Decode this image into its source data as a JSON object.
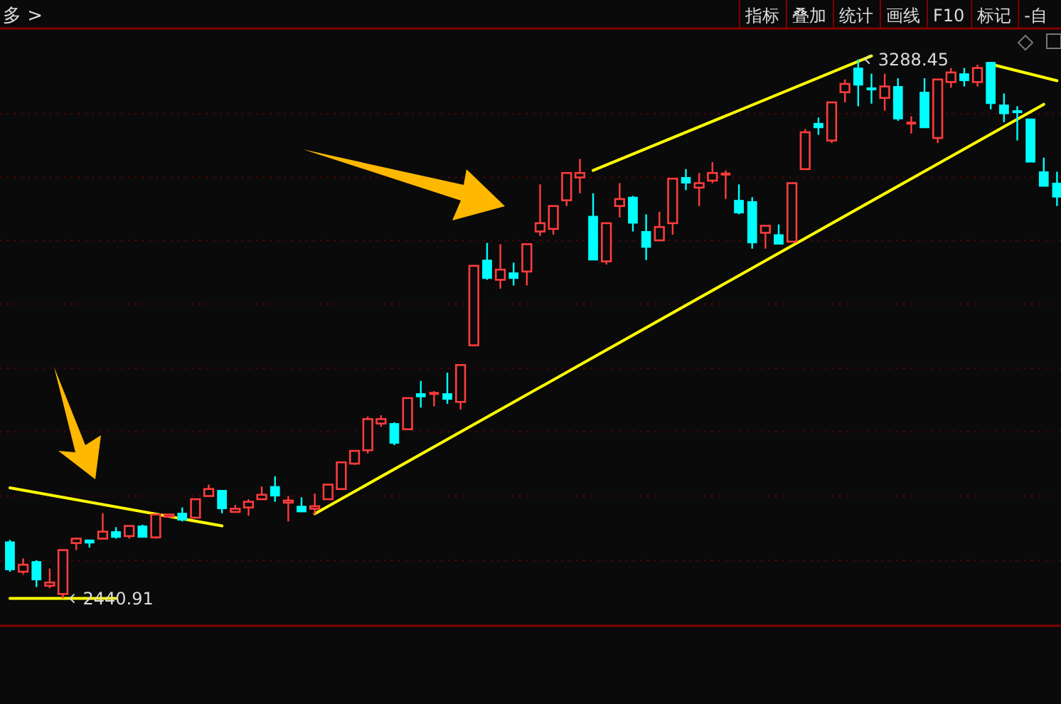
{
  "chart_data": {
    "type": "candlestick",
    "categories": [
      null,
      null,
      null,
      null,
      null,
      null,
      null,
      null,
      null,
      null,
      null,
      null,
      null,
      null,
      null,
      null,
      null,
      null,
      null,
      null,
      null,
      null,
      null,
      null,
      null,
      null,
      null,
      null,
      null,
      null,
      null,
      null,
      null,
      null,
      null,
      null,
      null,
      null,
      null,
      null,
      null,
      null,
      null,
      null,
      null,
      null,
      null,
      null,
      null,
      null,
      null,
      null,
      null,
      null,
      null,
      null,
      null,
      null,
      null,
      null,
      null,
      null,
      null,
      null,
      null,
      null,
      null,
      null,
      null,
      null,
      null,
      null,
      null,
      null,
      null,
      null,
      null,
      null,
      null,
      null
    ],
    "ohlc": [
      [
        2530,
        2533,
        2483,
        2486
      ],
      [
        2483,
        2504,
        2479,
        2494
      ],
      [
        2499,
        2501,
        2459,
        2470
      ],
      [
        2461,
        2488,
        2457,
        2466
      ],
      [
        2448,
        2517,
        2440.91,
        2517
      ],
      [
        2528,
        2537,
        2517,
        2535
      ],
      [
        2533,
        2533,
        2521,
        2528
      ],
      [
        2535,
        2575,
        2535,
        2546
      ],
      [
        2546,
        2553,
        2535,
        2537
      ],
      [
        2539,
        2555,
        2535,
        2555
      ],
      [
        2555,
        2557,
        2537,
        2537
      ],
      [
        2537,
        2573,
        2535,
        2573
      ],
      [
        2571,
        2573,
        2571,
        2573
      ],
      [
        2575,
        2584,
        2562,
        2564
      ],
      [
        2568,
        2597,
        2568,
        2597
      ],
      [
        2602,
        2620,
        2602,
        2613
      ],
      [
        2611,
        2611,
        2575,
        2582
      ],
      [
        2577,
        2588,
        2577,
        2582
      ],
      [
        2584,
        2597,
        2571,
        2593
      ],
      [
        2597,
        2617,
        2597,
        2604
      ],
      [
        2617,
        2633,
        2593,
        2602
      ],
      [
        2593,
        2602,
        2562,
        2595
      ],
      [
        2586,
        2600,
        2577,
        2577
      ],
      [
        2582,
        2606,
        2573,
        2586
      ],
      [
        2597,
        2620,
        2597,
        2620
      ],
      [
        2613,
        2655,
        2613,
        2655
      ],
      [
        2653,
        2673,
        2651,
        2673
      ],
      [
        2674,
        2727,
        2669,
        2723
      ],
      [
        2716,
        2729,
        2711,
        2723
      ],
      [
        2716,
        2718,
        2682,
        2685
      ],
      [
        2707,
        2756,
        2707,
        2756
      ],
      [
        2763,
        2783,
        2741,
        2758
      ],
      [
        2765,
        2767,
        2743,
        2765
      ],
      [
        2763,
        2796,
        2747,
        2754
      ],
      [
        2750,
        2808,
        2738,
        2808
      ],
      [
        2839,
        2964,
        2839,
        2964
      ],
      [
        2973,
        3000,
        2942,
        2944
      ],
      [
        2942,
        2998,
        2928,
        2958
      ],
      [
        2953,
        2969,
        2933,
        2944
      ],
      [
        2955,
        2998,
        2933,
        2998
      ],
      [
        3018,
        3092,
        3011,
        3031
      ],
      [
        3022,
        3058,
        3013,
        3058
      ],
      [
        3067,
        3110,
        3058,
        3110
      ],
      [
        3103,
        3132,
        3078,
        3110
      ],
      [
        3042,
        3078,
        2973,
        2973
      ],
      [
        2971,
        3031,
        2966,
        3031
      ],
      [
        3058,
        3094,
        3040,
        3069
      ],
      [
        3072,
        3074,
        3018,
        3031
      ],
      [
        3018,
        3045,
        2973,
        2993
      ],
      [
        3004,
        3049,
        3004,
        3025
      ],
      [
        3031,
        3101,
        3013,
        3101
      ],
      [
        3103,
        3116,
        3083,
        3094
      ],
      [
        3087,
        3110,
        3058,
        3094
      ],
      [
        3098,
        3127,
        3094,
        3110
      ],
      [
        3110,
        3114,
        3069,
        3110
      ],
      [
        3067,
        3092,
        3045,
        3047
      ],
      [
        3065,
        3072,
        2991,
        3000
      ],
      [
        3016,
        3027,
        2991,
        3027
      ],
      [
        3013,
        3029,
        2998,
        2998
      ],
      [
        3002,
        3094,
        3002,
        3094
      ],
      [
        3116,
        3179,
        3116,
        3174
      ],
      [
        3188,
        3197,
        3170,
        3181
      ],
      [
        3161,
        3221,
        3157,
        3221
      ],
      [
        3237,
        3257,
        3221,
        3250
      ],
      [
        3275,
        3288.45,
        3215,
        3248
      ],
      [
        3244,
        3266,
        3219,
        3243
      ],
      [
        3228,
        3266,
        3208,
        3246
      ],
      [
        3246,
        3259,
        3192,
        3195
      ],
      [
        3190,
        3199,
        3172,
        3190
      ],
      [
        3237,
        3259,
        3181,
        3181
      ],
      [
        3165,
        3257,
        3157,
        3257
      ],
      [
        3253,
        3275,
        3244,
        3268
      ],
      [
        3266,
        3275,
        3246,
        3255
      ],
      [
        3253,
        3280,
        3246,
        3275
      ],
      [
        3284,
        3284,
        3210,
        3219
      ],
      [
        3217,
        3235,
        3190,
        3203
      ],
      [
        3208,
        3215,
        3161,
        3207
      ],
      [
        3195,
        3195,
        3127,
        3127
      ],
      [
        3112,
        3134,
        3089,
        3089
      ],
      [
        3094,
        3112,
        3058,
        3072
      ]
    ],
    "colors": [
      "#00ffff",
      "#ff3c3c",
      "#00ffff",
      "#ff3c3c",
      "#ff3c3c",
      "#ff3c3c",
      "#00ffff",
      "#ff3c3c",
      "#00ffff",
      "#ff3c3c",
      "#00ffff",
      "#ff3c3c",
      "#ff3c3c",
      "#00ffff",
      "#ff3c3c",
      "#ff3c3c",
      "#00ffff",
      "#ff3c3c",
      "#ff3c3c",
      "#ff3c3c",
      "#00ffff",
      "#ff3c3c",
      "#00ffff",
      "#ff3c3c",
      "#ff3c3c",
      "#ff3c3c",
      "#ff3c3c",
      "#ff3c3c",
      "#ff3c3c",
      "#00ffff",
      "#ff3c3c",
      "#00ffff",
      "#ff3c3c",
      "#00ffff",
      "#ff3c3c",
      "#ff3c3c",
      "#00ffff",
      "#ff3c3c",
      "#00ffff",
      "#ff3c3c",
      "#ff3c3c",
      "#ff3c3c",
      "#ff3c3c",
      "#ff3c3c",
      "#00ffff",
      "#ff3c3c",
      "#ff3c3c",
      "#00ffff",
      "#00ffff",
      "#ff3c3c",
      "#ff3c3c",
      "#00ffff",
      "#ff3c3c",
      "#ff3c3c",
      "#ff3c3c",
      "#00ffff",
      "#00ffff",
      "#ff3c3c",
      "#00ffff",
      "#ff3c3c",
      "#ff3c3c",
      "#00ffff",
      "#ff3c3c",
      "#ff3c3c",
      "#00ffff",
      "#00ffff",
      "#ff3c3c",
      "#00ffff",
      "#ff3c3c",
      "#00ffff",
      "#ff3c3c",
      "#ff3c3c",
      "#00ffff",
      "#ff3c3c",
      "#00ffff",
      "#00ffff",
      "#00ffff",
      "#00ffff",
      "#00ffff",
      "#00ffff"
    ],
    "series": [
      {
        "type": "line",
        "color": "#ffff00",
        "values": [
          2615,
          null,
          null,
          null,
          null,
          null,
          null,
          null,
          null,
          null,
          null,
          null,
          null,
          null,
          null,
          null,
          2555,
          null,
          null,
          null,
          null,
          null,
          null,
          null,
          null,
          null,
          null,
          null,
          null,
          null,
          null,
          null,
          null,
          null,
          null,
          null,
          null,
          null,
          null,
          null,
          null,
          null,
          null,
          null,
          null,
          null,
          null,
          null,
          null,
          null,
          null,
          null,
          null,
          null,
          null,
          null,
          null,
          null,
          null,
          null,
          null,
          null,
          null,
          null,
          null,
          null,
          null,
          null,
          null,
          null,
          null,
          null,
          null,
          null,
          null,
          null,
          null,
          null,
          null,
          null
        ]
      },
      {
        "type": "line",
        "color": "#ffff00",
        "values": [
          2441,
          null,
          null,
          null,
          null,
          null,
          null,
          null,
          2441,
          null,
          null,
          null,
          null,
          null,
          null,
          null,
          null,
          null,
          null,
          null,
          null,
          null,
          null,
          null,
          null,
          null,
          null,
          null,
          null,
          null,
          null,
          null,
          null,
          null,
          null,
          null,
          null,
          null,
          null,
          null,
          null,
          null,
          null,
          null,
          null,
          null,
          null,
          null,
          null,
          null,
          null,
          null,
          null,
          null,
          null,
          null,
          null,
          null,
          null,
          null,
          null,
          null,
          null,
          null,
          null,
          null,
          null,
          null,
          null,
          null,
          null,
          null,
          null,
          null,
          null,
          null,
          null,
          null,
          null,
          null
        ]
      },
      {
        "type": "line",
        "color": "#ffff00",
        "values": [
          null,
          null,
          null,
          null,
          null,
          null,
          null,
          null,
          null,
          null,
          null,
          null,
          null,
          null,
          null,
          null,
          null,
          null,
          null,
          null,
          null,
          null,
          null,
          2574,
          null,
          null,
          null,
          null,
          null,
          null,
          null,
          null,
          null,
          null,
          null,
          null,
          null,
          null,
          null,
          null,
          null,
          null,
          null,
          null,
          null,
          null,
          null,
          null,
          null,
          null,
          null,
          null,
          null,
          null,
          null,
          null,
          null,
          null,
          null,
          null,
          null,
          null,
          null,
          null,
          null,
          null,
          null,
          null,
          null,
          null,
          null,
          null,
          null,
          null,
          null,
          null,
          null,
          null,
          3218,
          null
        ]
      },
      {
        "type": "line",
        "color": "#ffff00",
        "values": [
          null,
          null,
          null,
          null,
          null,
          null,
          null,
          null,
          null,
          null,
          null,
          null,
          null,
          null,
          null,
          null,
          null,
          null,
          null,
          null,
          null,
          null,
          null,
          null,
          null,
          null,
          null,
          null,
          null,
          null,
          null,
          null,
          null,
          null,
          null,
          null,
          null,
          null,
          null,
          null,
          null,
          null,
          null,
          null,
          3114,
          null,
          null,
          null,
          null,
          null,
          null,
          null,
          null,
          null,
          null,
          null,
          null,
          null,
          null,
          null,
          null,
          null,
          null,
          null,
          null,
          3294,
          null,
          null,
          null,
          null,
          null,
          null,
          null,
          null,
          null,
          null,
          null,
          null,
          null,
          null
        ]
      },
      {
        "type": "line",
        "color": "#ffff00",
        "values": [
          null,
          null,
          null,
          null,
          null,
          null,
          null,
          null,
          null,
          null,
          null,
          null,
          null,
          null,
          null,
          null,
          null,
          null,
          null,
          null,
          null,
          null,
          null,
          null,
          null,
          null,
          null,
          null,
          null,
          null,
          null,
          null,
          null,
          null,
          null,
          null,
          null,
          null,
          null,
          null,
          null,
          null,
          null,
          null,
          null,
          null,
          null,
          null,
          null,
          null,
          null,
          null,
          null,
          null,
          null,
          null,
          null,
          null,
          null,
          null,
          null,
          null,
          null,
          null,
          null,
          null,
          null,
          null,
          null,
          null,
          null,
          null,
          null,
          null,
          3281,
          null,
          null,
          null,
          null,
          3255
        ]
      }
    ],
    "ylim": [
      2398,
      3335
    ],
    "yticks": [
      {
        "value": 2501,
        "label": null
      },
      {
        "value": 2602,
        "label": null
      },
      {
        "value": 2703,
        "label": null
      },
      {
        "value": 2803,
        "label": null
      },
      {
        "value": 2904,
        "label": null
      },
      {
        "value": 3004,
        "label": null
      },
      {
        "value": 3103,
        "label": null
      },
      {
        "value": 3203,
        "label": null
      }
    ],
    "grid": "y",
    "annotations": [
      "多 >",
      "指标",
      "叠加",
      "统计",
      "画线",
      "F10",
      "标记",
      "-自",
      "3288.45",
      "2440.91"
    ]
  }
}
